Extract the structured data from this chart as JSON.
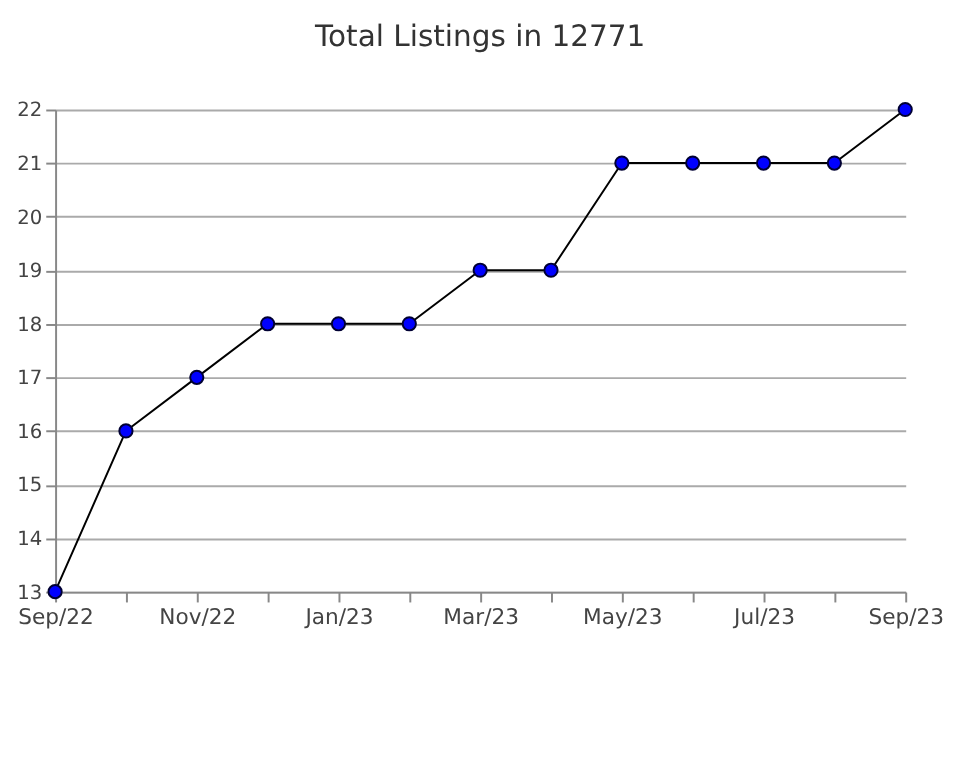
{
  "chart_data": {
    "type": "line",
    "title": "Total Listings in 12771",
    "categories": [
      "Sep/22",
      null,
      "Nov/22",
      null,
      "Jan/23",
      null,
      "Mar/23",
      null,
      "May/23",
      null,
      "Jul/23",
      null,
      "Sep/23"
    ],
    "series": [
      {
        "color": "#0000ff",
        "values": [
          13,
          16,
          17,
          18,
          18,
          18,
          19,
          19,
          21,
          21,
          21,
          21,
          22
        ]
      }
    ],
    "ylim": [
      13,
      22
    ],
    "yticks": [
      13,
      14,
      15,
      16,
      17,
      18,
      19,
      20,
      21,
      22
    ],
    "grid": "y",
    "marker": "circle",
    "line_style": "solid"
  }
}
